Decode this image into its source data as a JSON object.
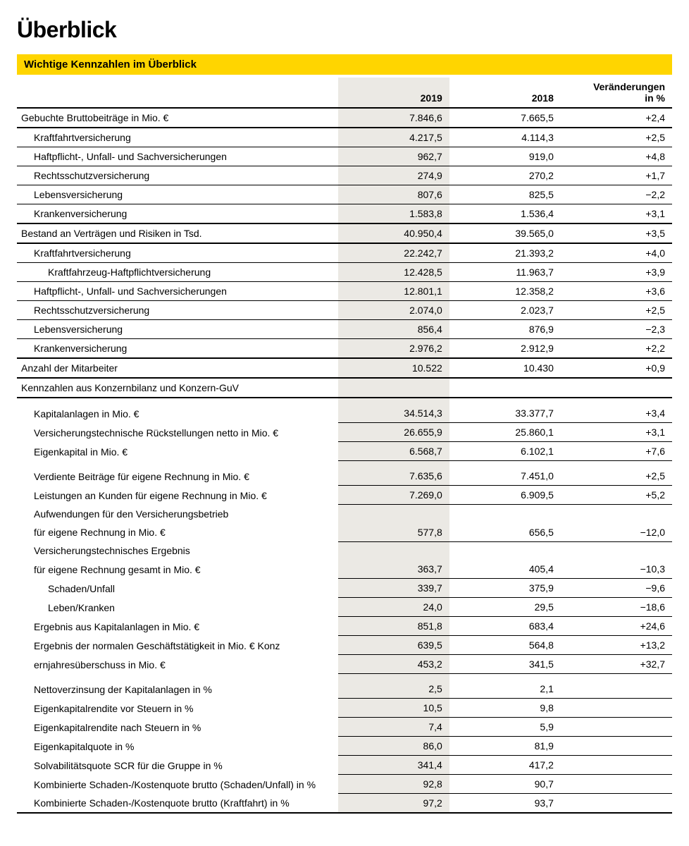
{
  "title": "Überblick",
  "subtitle": "Wichtige Kennzahlen im Überblick",
  "columns": {
    "y2019": "2019",
    "y2018": "2018",
    "chg_top": "Veränderungen",
    "chg_bot": "in %"
  },
  "rows": [
    {
      "type": "section",
      "label": "Gebuchte Bruttobeiträge in Mio. €",
      "v19": "7.846,6",
      "v18": "7.665,5",
      "chg": "+2,4"
    },
    {
      "type": "detail",
      "indent": 1,
      "label": "Kraftfahrtversicherung",
      "v19": "4.217,5",
      "v18": "4.114,3",
      "chg": "+2,5"
    },
    {
      "type": "detail",
      "indent": 1,
      "label": "Haftpflicht-, Unfall- und Sachversicherungen",
      "v19": "962,7",
      "v18": "919,0",
      "chg": "+4,8"
    },
    {
      "type": "detail",
      "indent": 1,
      "label": "Rechtsschutzversicherung",
      "v19": "274,9",
      "v18": "270,2",
      "chg": "+1,7"
    },
    {
      "type": "detail",
      "indent": 1,
      "label": "Lebensversicherung",
      "v19": "807,6",
      "v18": "825,5",
      "chg": "−2,2"
    },
    {
      "type": "last-detail",
      "indent": 1,
      "label": "Krankenversicherung",
      "v19": "1.583,8",
      "v18": "1.536,4",
      "chg": "+3,1"
    },
    {
      "type": "section",
      "label": "Bestand an Verträgen und Risiken in Tsd.",
      "v19": "40.950,4",
      "v18": "39.565,0",
      "chg": "+3,5"
    },
    {
      "type": "detail",
      "indent": 1,
      "label": "Kraftfahrtversicherung",
      "v19": "22.242,7",
      "v18": "21.393,2",
      "chg": "+4,0"
    },
    {
      "type": "detail",
      "indent": 2,
      "label": "Kraftfahrzeug-Haftpflichtversicherung",
      "v19": "12.428,5",
      "v18": "11.963,7",
      "chg": "+3,9"
    },
    {
      "type": "detail",
      "indent": 1,
      "label": "Haftpflicht-, Unfall- und Sachversicherungen",
      "v19": "12.801,1",
      "v18": "12.358,2",
      "chg": "+3,6"
    },
    {
      "type": "detail",
      "indent": 1,
      "label": "Rechtsschutzversicherung",
      "v19": "2.074,0",
      "v18": "2.023,7",
      "chg": "+2,5"
    },
    {
      "type": "detail",
      "indent": 1,
      "label": "Lebensversicherung",
      "v19": "856,4",
      "v18": "876,9",
      "chg": "−2,3"
    },
    {
      "type": "last-detail",
      "indent": 1,
      "label": "Krankenversicherung",
      "v19": "2.976,2",
      "v18": "2.912,9",
      "chg": "+2,2"
    },
    {
      "type": "section",
      "label": "Anzahl der Mitarbeiter",
      "v19": "10.522",
      "v18": "10.430",
      "chg": "+0,9"
    },
    {
      "type": "section",
      "label": "Kennzahlen aus Konzernbilanz und Konzern-GuV",
      "v19": "",
      "v18": "",
      "chg": ""
    },
    {
      "type": "spacer"
    },
    {
      "type": "noline",
      "indent": 1,
      "label": "Kapitalanlagen in Mio. €",
      "v19": "34.514,3",
      "v18": "33.377,7",
      "chg": "+3,4"
    },
    {
      "type": "noline",
      "indent": 1,
      "label": "Versicherungstechnische Rückstellungen netto in Mio. €",
      "v19": "26.655,9",
      "v18": "25.860,1",
      "chg": "+3,1"
    },
    {
      "type": "noline",
      "indent": 1,
      "label": "Eigenkapital in Mio. €",
      "v19": "6.568,7",
      "v18": "6.102,1",
      "chg": "+7,6"
    },
    {
      "type": "spacer"
    },
    {
      "type": "noline",
      "indent": 1,
      "label": "Verdiente Beiträge für eigene Rechnung in Mio. €",
      "v19": "7.635,6",
      "v18": "7.451,0",
      "chg": "+2,5"
    },
    {
      "type": "noline",
      "indent": 1,
      "label": "Leistungen an Kunden für eigene Rechnung in Mio. €",
      "v19": "7.269,0",
      "v18": "6.909,5",
      "chg": "+5,2"
    },
    {
      "type": "noline-all",
      "indent": 1,
      "label": "Aufwendungen für den Versicherungsbetrieb",
      "v19": "",
      "v18": "",
      "chg": ""
    },
    {
      "type": "noline",
      "indent": 1,
      "label": "für eigene Rechnung in Mio. €",
      "v19": "577,8",
      "v18": "656,5",
      "chg": "−12,0"
    },
    {
      "type": "noline-all",
      "indent": 1,
      "label": "Versicherungstechnisches Ergebnis",
      "v19": "",
      "v18": "",
      "chg": ""
    },
    {
      "type": "noline",
      "indent": 1,
      "label": "für eigene Rechnung gesamt in Mio. €",
      "v19": "363,7",
      "v18": "405,4",
      "chg": "−10,3"
    },
    {
      "type": "noline",
      "indent": 2,
      "label": "Schaden/Unfall",
      "v19": "339,7",
      "v18": "375,9",
      "chg": "−9,6"
    },
    {
      "type": "noline",
      "indent": 2,
      "label": "Leben/Kranken",
      "v19": "24,0",
      "v18": "29,5",
      "chg": "−18,6"
    },
    {
      "type": "noline",
      "indent": 1,
      "label": "Ergebnis aus Kapitalanlagen in Mio. €",
      "v19": "851,8",
      "v18": "683,4",
      "chg": "+24,6"
    },
    {
      "type": "noline",
      "indent": 1,
      "label": "Ergebnis der normalen Geschäftstätigkeit in Mio. € Konz",
      "v19": "639,5",
      "v18": "564,8",
      "chg": "+13,2"
    },
    {
      "type": "noline",
      "indent": 1,
      "label": "ernjahresüberschuss in Mio. €",
      "v19": "453,2",
      "v18": "341,5",
      "chg": "+32,7"
    },
    {
      "type": "spacer"
    },
    {
      "type": "noline",
      "indent": 1,
      "label": "Nettoverzinsung der Kapitalanlagen in %",
      "v19": "2,5",
      "v18": "2,1",
      "chg": ""
    },
    {
      "type": "noline",
      "indent": 1,
      "label": "Eigenkapitalrendite vor Steuern in %",
      "v19": "10,5",
      "v18": "9,8",
      "chg": ""
    },
    {
      "type": "noline",
      "indent": 1,
      "label": "Eigenkapitalrendite nach Steuern in %",
      "v19": "7,4",
      "v18": "5,9",
      "chg": ""
    },
    {
      "type": "noline",
      "indent": 1,
      "label": "Eigenkapitalquote in %",
      "v19": "86,0",
      "v18": "81,9",
      "chg": ""
    },
    {
      "type": "noline",
      "indent": 1,
      "label": "Solvabilitätsquote SCR für die Gruppe in %",
      "v19": "341,4",
      "v18": "417,2",
      "chg": ""
    },
    {
      "type": "noline",
      "indent": 1,
      "label": "Kombinierte Schaden-/Kostenquote brutto (Schaden/Unfall) in %",
      "v19": "92,8",
      "v18": "90,7",
      "chg": ""
    },
    {
      "type": "last-detail",
      "indent": 1,
      "label": "Kombinierte Schaden-/Kostenquote brutto (Kraftfahrt) in %",
      "v19": "97,2",
      "v18": "93,7",
      "chg": ""
    }
  ]
}
